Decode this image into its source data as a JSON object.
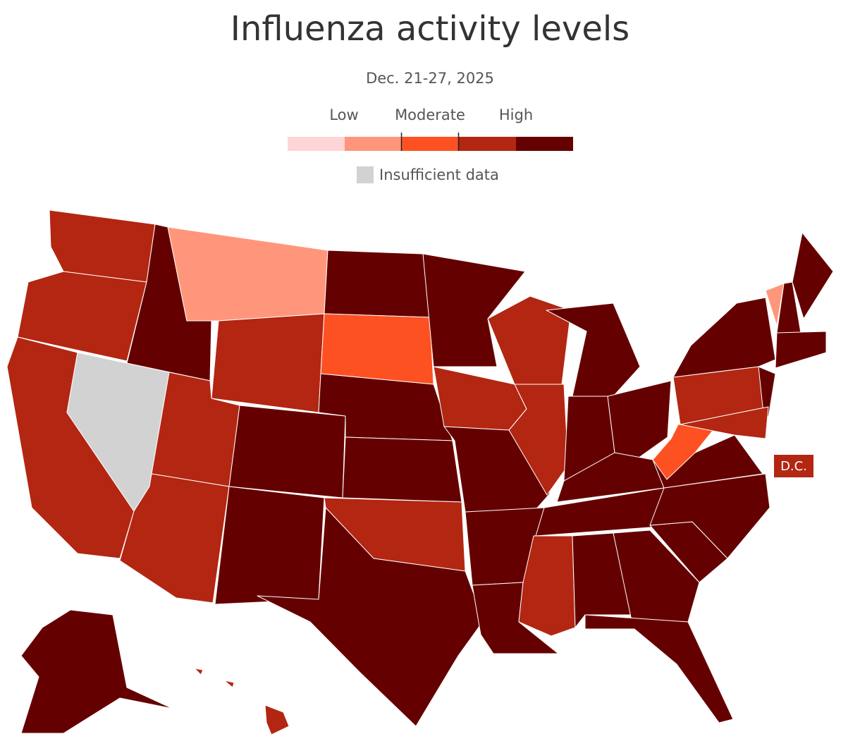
{
  "header": {
    "title": "Influenza activity levels",
    "subtitle": "Dec. 21-27, 2025"
  },
  "legend": {
    "labels": [
      "Low",
      "Moderate",
      "High"
    ],
    "colors": [
      "#fdd5d5",
      "#ff967b",
      "#fe5122",
      "#b32612",
      "#650000"
    ],
    "insufficient": {
      "label": "Insufficient data",
      "color": "#d2d2d2"
    }
  },
  "map": {
    "levels": [
      3,
      3,
      3,
      null,
      4,
      1,
      3,
      3,
      3,
      4,
      4,
      4,
      2,
      4,
      4,
      3,
      4,
      4,
      3,
      4,
      4,
      4,
      3,
      3,
      4,
      4,
      4,
      4,
      4,
      3,
      4,
      4,
      4,
      4,
      4,
      4,
      2,
      3,
      4,
      4,
      3,
      1,
      4,
      4,
      4,
      4,
      3,
      3,
      3
    ],
    "dc": {
      "label": "D.C.",
      "level": 3
    }
  }
}
